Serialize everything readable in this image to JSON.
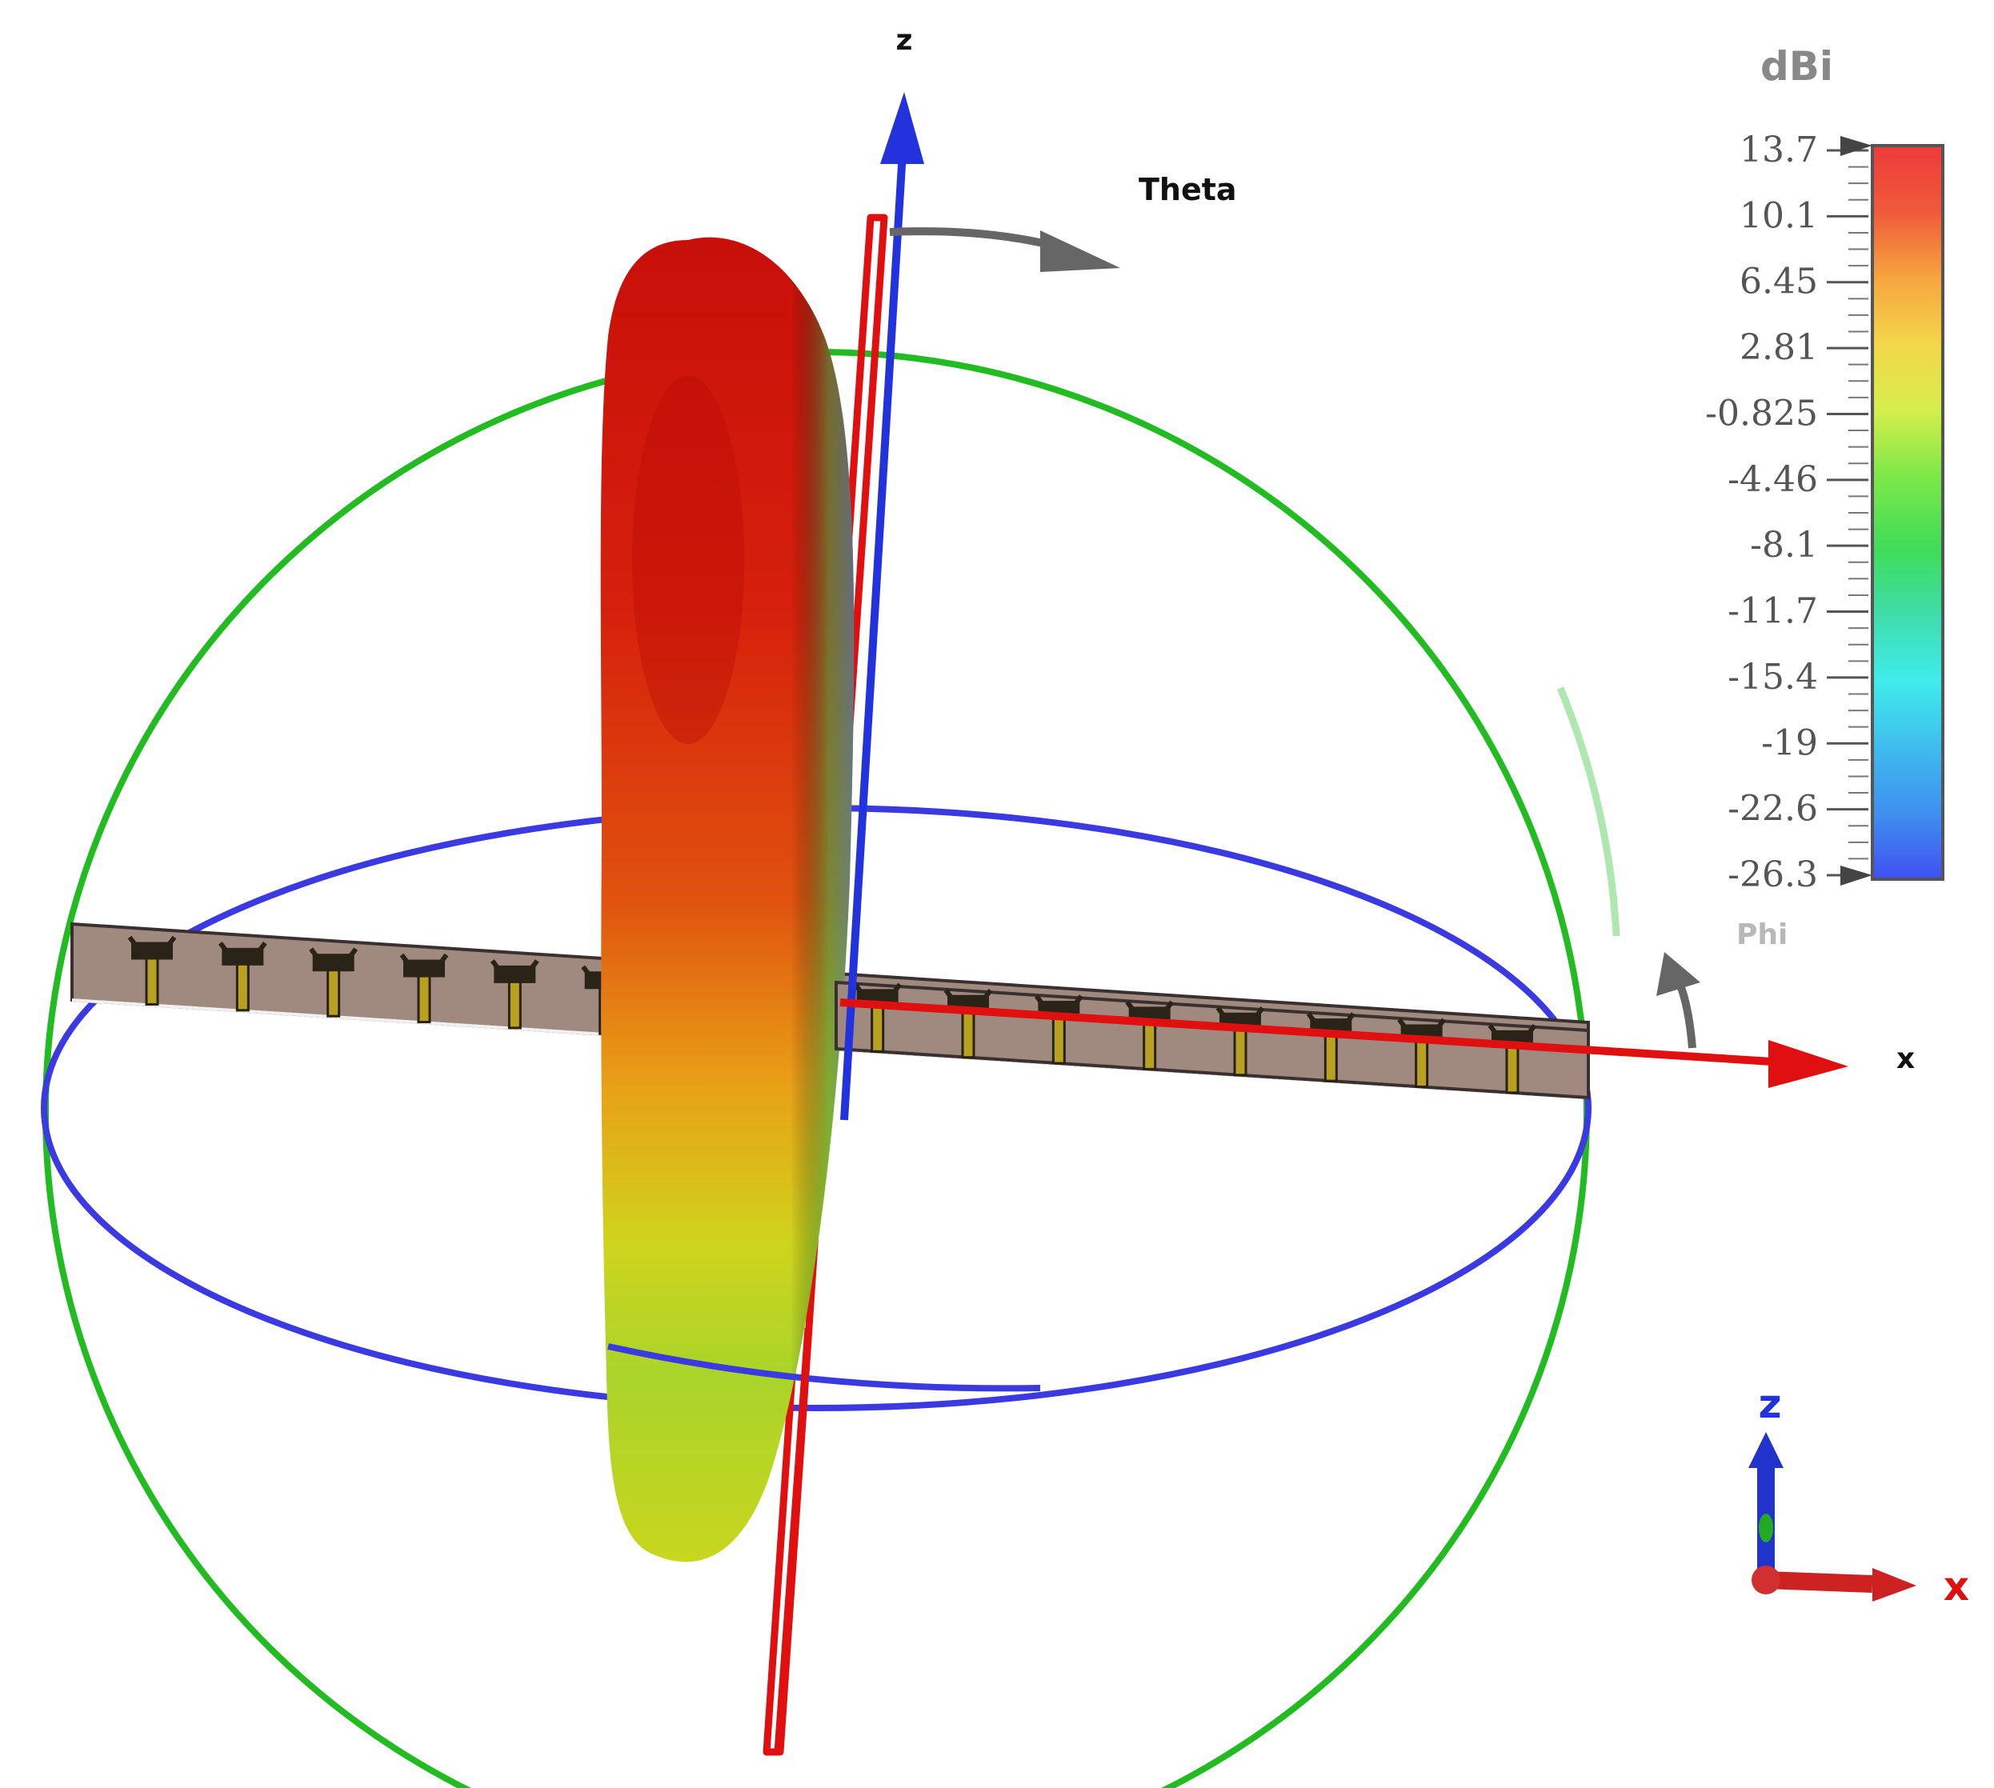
{
  "axes": {
    "z_label": "z",
    "x_label": "x",
    "theta_label": "Theta",
    "phi_label": "Phi"
  },
  "legend": {
    "unit": "dBi",
    "ticks": [
      "13.7",
      "10.1",
      "6.45",
      "2.81",
      "-0.825",
      "-4.46",
      "-8.1",
      "-11.7",
      "-15.4",
      "-19",
      "-22.6",
      "-26.3"
    ],
    "colors": [
      "#ee3b3b",
      "#f05a3a",
      "#f47e3c",
      "#f8a33f",
      "#f6c843",
      "#e8e84a",
      "#b6e64a",
      "#5ee04a",
      "#3fdc8c",
      "#3fe6dc",
      "#3fa6ee",
      "#4060f2"
    ]
  },
  "triad": {
    "z_label": "z",
    "x_label": "x"
  },
  "array": {
    "element_count": 16
  }
}
